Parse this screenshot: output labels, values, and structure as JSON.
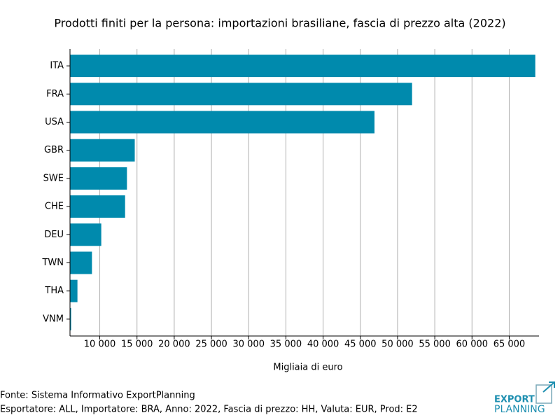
{
  "chart_data": {
    "type": "barh",
    "title": "Prodotti finiti per la persona: importazioni brasiliane, fascia di prezzo alta (2022)",
    "xlabel": "Migliaia di euro",
    "categories": [
      "ITA",
      "FRA",
      "USA",
      "GBR",
      "SWE",
      "CHE",
      "DEU",
      "TWN",
      "THA",
      "VNM"
    ],
    "values": [
      68500,
      51950,
      46900,
      14700,
      13650,
      13400,
      10200,
      8950,
      7000,
      6150
    ],
    "color": "#008aad",
    "xlim": [
      6000,
      69000
    ],
    "xticks": [
      {
        "value": 10000,
        "label": "10 000"
      },
      {
        "value": 15000,
        "label": "15 000"
      },
      {
        "value": 20000,
        "label": "20 000"
      },
      {
        "value": 25000,
        "label": "25 000"
      },
      {
        "value": 30000,
        "label": "30 000"
      },
      {
        "value": 35000,
        "label": "35 000"
      },
      {
        "value": 40000,
        "label": "40 000"
      },
      {
        "value": 45000,
        "label": "45 000"
      },
      {
        "value": 50000,
        "label": "50 000"
      },
      {
        "value": 55000,
        "label": "55 000"
      },
      {
        "value": 60000,
        "label": "60 000"
      },
      {
        "value": 65000,
        "label": "65 000"
      }
    ],
    "grid": true
  },
  "footer": {
    "source": "Fonte: Sistema Informativo ExportPlanning",
    "details": "Esportatore: ALL, Importatore: BRA, Anno: 2022, Fascia di prezzo: HH, Valuta: EUR, Prod: E2",
    "logo_top": "EXPORT",
    "logo_bottom": "PLANNING"
  }
}
